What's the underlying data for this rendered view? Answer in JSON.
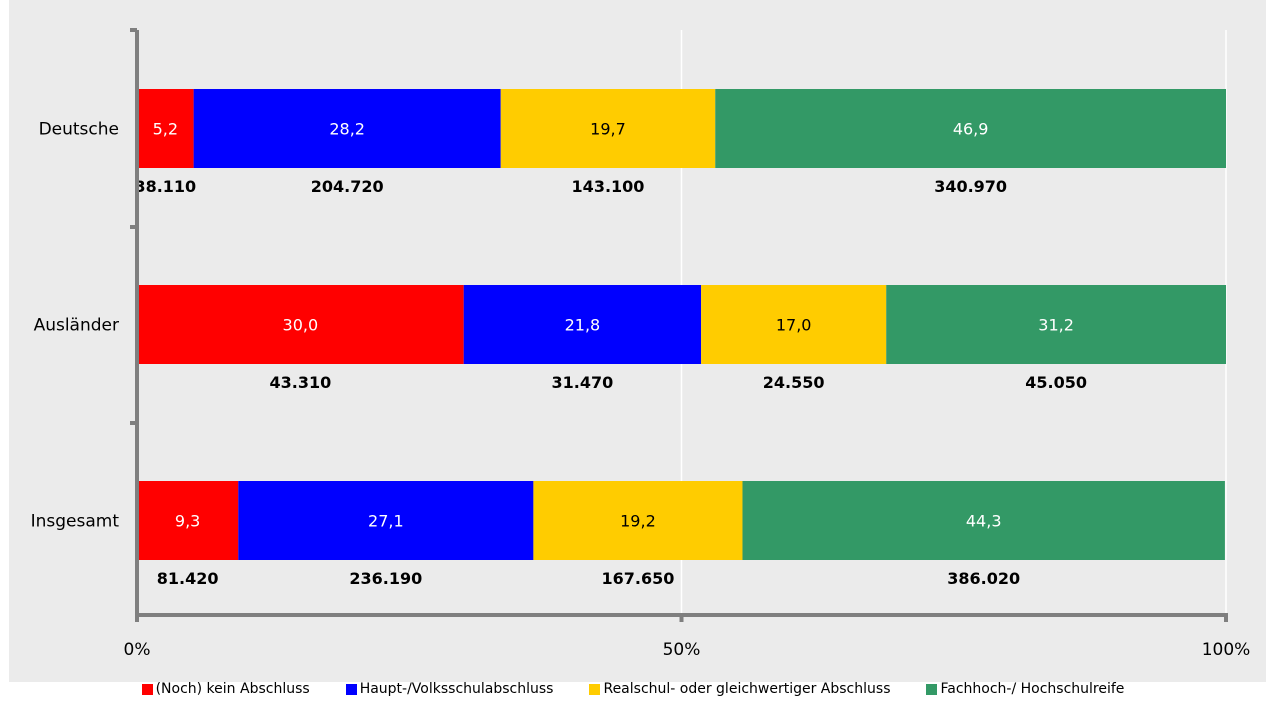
{
  "chart_data": {
    "type": "bar",
    "orientation": "horizontal",
    "stacked": true,
    "normalized": true,
    "categories": [
      "Deutsche",
      "Ausländer",
      "Insgesamt"
    ],
    "series": [
      {
        "name": "(Noch) kein Abschluss",
        "color": "#ff0000",
        "text_color": "#ffffff",
        "values": [
          5.2,
          30.0,
          9.3
        ],
        "value_labels": [
          "5,2",
          "30,0",
          "9,3"
        ],
        "counts": [
          "38.110",
          "43.310",
          "81.420"
        ]
      },
      {
        "name": "Haupt-/Volksschulabschluss",
        "color": "#0000ff",
        "text_color": "#ffffff",
        "values": [
          28.2,
          21.8,
          27.1
        ],
        "value_labels": [
          "28,2",
          "21,8",
          "27,1"
        ],
        "counts": [
          "204.720",
          "31.470",
          "236.190"
        ]
      },
      {
        "name": "Realschul- oder gleichwertiger Abschluss",
        "color": "#ffcc00",
        "text_color": "#000000",
        "values": [
          19.7,
          17.0,
          19.2
        ],
        "value_labels": [
          "19,7",
          "17,0",
          "19,2"
        ],
        "counts": [
          "143.100",
          "24.550",
          "167.650"
        ]
      },
      {
        "name": "Fachhoch-/ Hochschulreife",
        "color": "#339966",
        "text_color": "#ffffff",
        "values": [
          46.9,
          31.2,
          44.3
        ],
        "value_labels": [
          "46,9",
          "31,2",
          "44,3"
        ],
        "counts": [
          "340.970",
          "45.050",
          "386.020"
        ]
      }
    ],
    "xlim": [
      0,
      100
    ],
    "x_ticks": [
      0,
      50,
      100
    ],
    "x_tick_labels": [
      "0%",
      "50%",
      "100%"
    ],
    "grid": "vertical",
    "legend": "bottom"
  }
}
